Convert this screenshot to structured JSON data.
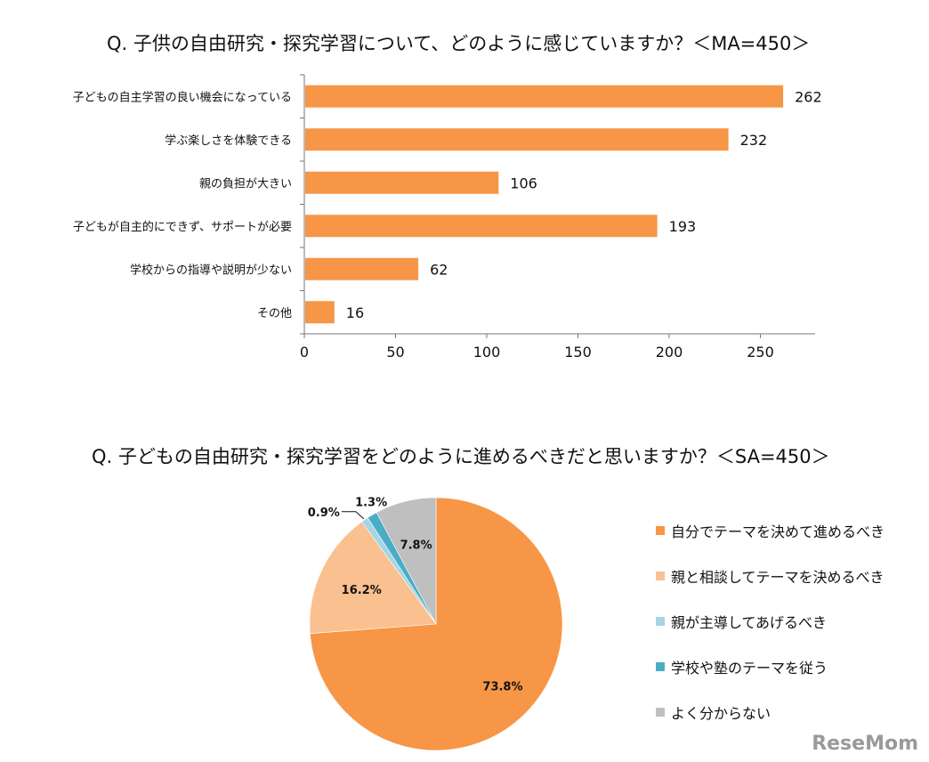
{
  "chart_data": [
    {
      "type": "bar",
      "orientation": "horizontal",
      "title": "Q. 子供の自由研究・探究学習について、どのように感じていますか？＜MA=450＞",
      "categories": [
        "子どもの自主学習の良い機会になっている",
        "学ぶ楽しさを体験できる",
        "親の負担が大きい",
        "子どもが自主的にできず、サポートが必要",
        "学校からの指導や説明が少ない",
        "その他"
      ],
      "values": [
        262,
        232,
        106,
        193,
        62,
        16
      ],
      "xlim": [
        0,
        280
      ],
      "xticks": [
        0,
        50,
        100,
        150,
        200,
        250
      ],
      "color": "#F79646"
    },
    {
      "type": "pie",
      "title": "Q. 子どもの自由研究・探究学習をどのように進めるべきだと思いますか？＜SA=450＞",
      "slices": [
        {
          "label": "自分でテーマを決めて進めるべき",
          "value": 73.8,
          "text": "73.8%",
          "color": "#F79646"
        },
        {
          "label": "親と相談してテーマを決めるべき",
          "value": 16.2,
          "text": "16.2%",
          "color": "#FAC090"
        },
        {
          "label": "親が主導してあげるべき",
          "value": 0.9,
          "text": "0.9%",
          "color": "#A5D4E4"
        },
        {
          "label": "学校や塾のテーマを従う",
          "value": 1.3,
          "text": "1.3%",
          "color": "#4BACC6"
        },
        {
          "label": "よく分からない",
          "value": 7.8,
          "text": "7.8%",
          "color": "#BFBFBF"
        }
      ],
      "legend_position": "right"
    }
  ],
  "watermark": "ReseMom"
}
